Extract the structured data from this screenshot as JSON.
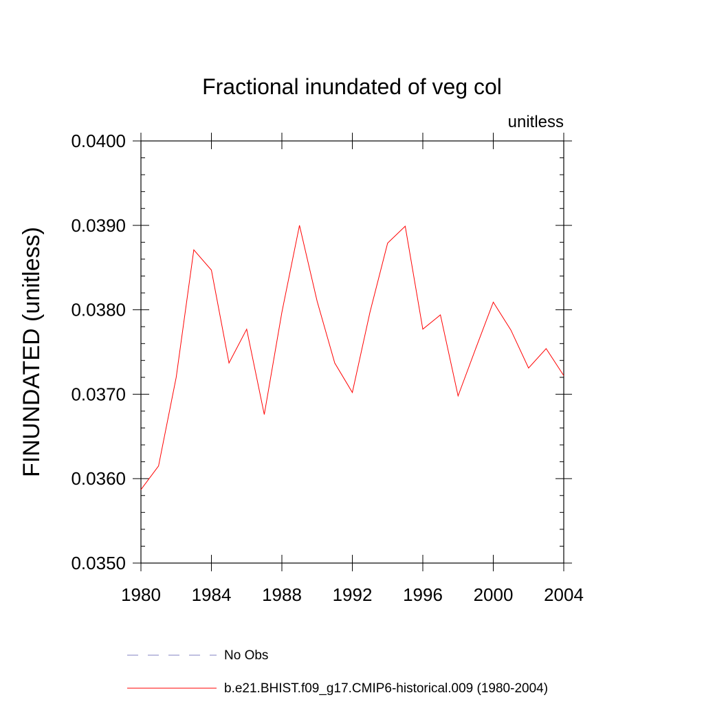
{
  "chart_data": {
    "type": "line",
    "title": "Fractional inundated of veg col",
    "units_label": "unitless",
    "xlabel": "",
    "ylabel": "FINUNDATED  (unitless)",
    "xlim": [
      1980,
      2004
    ],
    "ylim": [
      0.035,
      0.04
    ],
    "x_ticks": [
      "1980",
      "1984",
      "1988",
      "1992",
      "1996",
      "2000",
      "2004"
    ],
    "y_ticks": [
      "0.0350",
      "0.0360",
      "0.0370",
      "0.0380",
      "0.0390",
      "0.0400"
    ],
    "series": [
      {
        "name": "b.e21.BHIST.f09_g17.CMIP6-historical.009 (1980-2004)",
        "color": "#ff0000",
        "style": "solid",
        "x": [
          1980,
          1981,
          1982,
          1983,
          1984,
          1985,
          1986,
          1987,
          1988,
          1989,
          1990,
          1991,
          1992,
          1993,
          1994,
          1995,
          1996,
          1997,
          1998,
          1999,
          2000,
          2001,
          2002,
          2003,
          2004
        ],
        "values": [
          0.03587,
          0.03615,
          0.0372,
          0.03871,
          0.03847,
          0.03737,
          0.03777,
          0.03676,
          0.03797,
          0.039,
          0.0381,
          0.03737,
          0.03702,
          0.03797,
          0.03879,
          0.03899,
          0.03777,
          0.03794,
          0.03698,
          0.03754,
          0.03809,
          0.03776,
          0.03731,
          0.03754,
          0.03722
        ]
      }
    ],
    "legend": [
      {
        "label": "No Obs",
        "color": "#8080c0",
        "style": "dashed"
      },
      {
        "label": "b.e21.BHIST.f09_g17.CMIP6-historical.009 (1980-2004)",
        "color": "#ff0000",
        "style": "solid"
      }
    ]
  }
}
